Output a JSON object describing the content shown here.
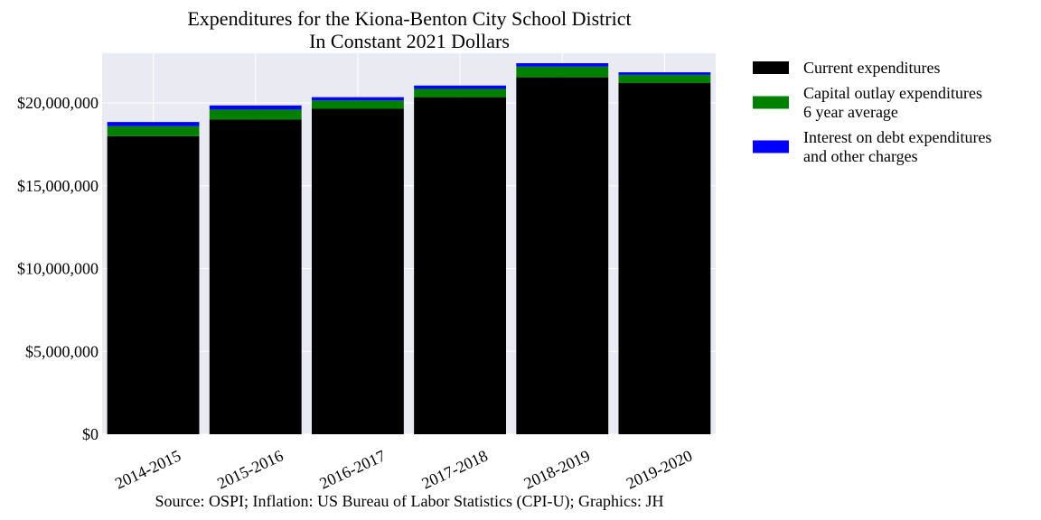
{
  "chart_data": {
    "type": "bar",
    "stacked": true,
    "title": "Expenditures for the Kiona-Benton City School District",
    "subtitle": "In Constant 2021 Dollars",
    "xlabel": "",
    "ylabel": "",
    "categories": [
      "2014-2015",
      "2015-2016",
      "2016-2017",
      "2017-2018",
      "2018-2019",
      "2019-2020"
    ],
    "series": [
      {
        "name": "Current expenditures",
        "color": "#000000",
        "values": [
          18000000,
          19000000,
          19650000,
          20350000,
          21550000,
          21200000
        ]
      },
      {
        "name_lines": [
          "Capital outlay expenditures",
          "6 year average"
        ],
        "color": "#008000",
        "values": [
          600000,
          600000,
          500000,
          500000,
          650000,
          500000
        ]
      },
      {
        "name_lines": [
          "Interest on debt expenditures",
          "and other charges"
        ],
        "color": "#0000ff",
        "values": [
          250000,
          250000,
          200000,
          200000,
          200000,
          150000
        ]
      }
    ],
    "ylim": [
      0,
      23000000
    ],
    "yticks": [
      0,
      5000000,
      10000000,
      15000000,
      20000000
    ],
    "ytick_labels": [
      "$0",
      "$5,000,000",
      "$10,000,000",
      "$15,000,000",
      "$20,000,000"
    ],
    "grid": true,
    "legend_position": "outside-right",
    "colors": {
      "plot_background": "#eaeaf2",
      "grid": "#ffffff"
    }
  },
  "source_note": "Source: OSPI; Inflation: US Bureau of Labor Statistics (CPI-U); Graphics: JH"
}
